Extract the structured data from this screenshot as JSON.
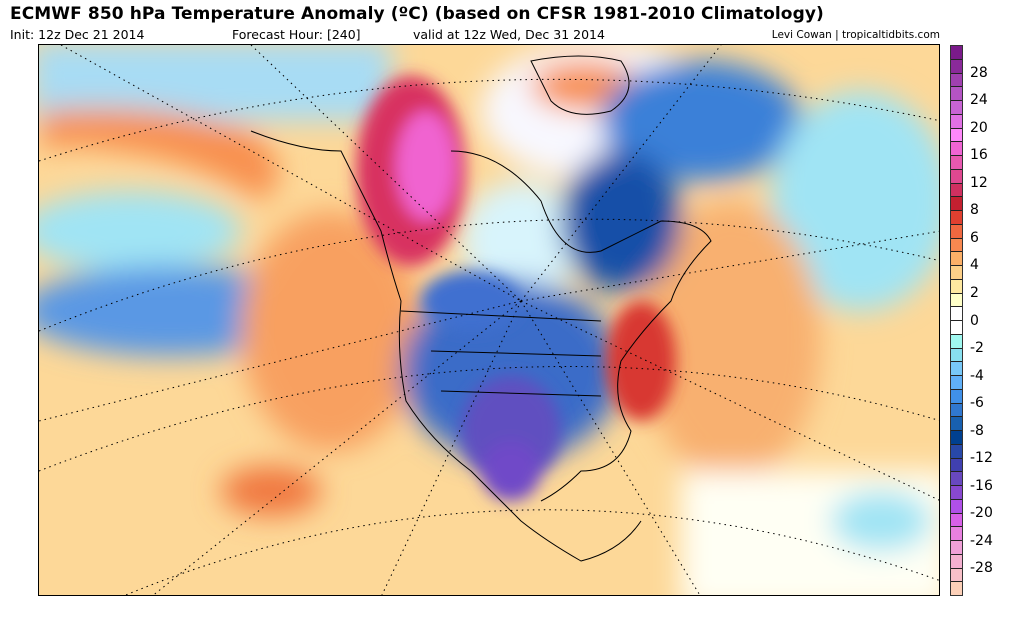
{
  "header": {
    "title": "ECMWF 850 hPa Temperature Anomaly (ºC) (based on CFSR 1981-2010 Climatology)",
    "init": "Init: 12z Dec 21 2014",
    "forecast_hour": "Forecast Hour: [240]",
    "valid": "valid at 12z Wed, Dec 31 2014",
    "credit": "Levi Cowan | tropicaltidbits.com"
  },
  "colorbar": {
    "labels": [
      "28",
      "24",
      "20",
      "16",
      "12",
      "8",
      "6",
      "4",
      "2",
      "0",
      "-2",
      "-4",
      "-6",
      "-8",
      "-12",
      "-16",
      "-20",
      "-24",
      "-28"
    ],
    "colors": [
      "#7a1a8a",
      "#8a2a9a",
      "#a040b0",
      "#b454c4",
      "#c864d4",
      "#e070e4",
      "#ff88fa",
      "#f064d4",
      "#e858b0",
      "#e04890",
      "#d03060",
      "#c42030",
      "#e04030",
      "#f06840",
      "#f88850",
      "#fcb068",
      "#fdd088",
      "#fee8a0",
      "#ffffc8",
      "#ffffff",
      "#ffffff",
      "#a0f8f0",
      "#88e0f0",
      "#78c8f8",
      "#60b0f8",
      "#4090e8",
      "#3078d0",
      "#1860b0",
      "#004090",
      "#2848a8",
      "#4040b0",
      "#6848c0",
      "#8848d0",
      "#b050e8",
      "#d860e8",
      "#e880e0",
      "#f0a0d8",
      "#f4b0d0",
      "#f8c0c8",
      "#fcd0b8"
    ]
  },
  "map": {
    "region": "North America",
    "colors": {
      "warm": "#f8a060",
      "hot": "#d83060",
      "cold": "#3060c0",
      "very_cold": "#6848c0",
      "cool": "#a0d8f0"
    }
  }
}
